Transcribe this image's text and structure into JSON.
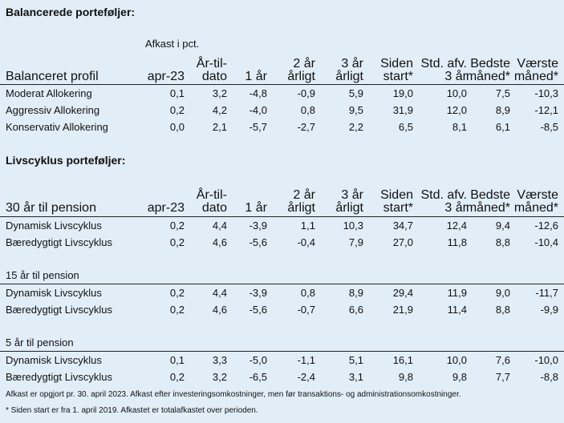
{
  "section1": {
    "title": "Balancerede porteføljer:",
    "afkast_label": "Afkast i pct.",
    "first_col_header": "Balanceret profil",
    "rows": [
      {
        "name": "Moderat Allokering",
        "values": [
          "0,1",
          "3,2",
          "-4,8",
          "-0,9",
          "5,9",
          "19,0",
          "10,0",
          "7,5",
          "-10,3"
        ]
      },
      {
        "name": "Aggressiv Allokering",
        "values": [
          "0,2",
          "4,2",
          "-4,0",
          "0,8",
          "9,5",
          "31,9",
          "12,0",
          "8,9",
          "-12,1"
        ]
      },
      {
        "name": "Konservativ Allokering",
        "values": [
          "0,0",
          "2,1",
          "-5,7",
          "-2,7",
          "2,2",
          "6,5",
          "8,1",
          "6,1",
          "-8,5"
        ]
      }
    ]
  },
  "columns": [
    "apr-23",
    "År-til-\ndato",
    "1 år",
    "2 år\nårligt",
    "3 år\nårligt",
    "Siden\nstart*",
    "Std. afv.\n3 år",
    "Bedste\nmåned*",
    "Værste\nmåned*"
  ],
  "section2": {
    "title": "Livscyklus porteføljer:",
    "groups": [
      {
        "label": "30 år til pension",
        "rows": [
          {
            "name": "Dynamisk Livscyklus",
            "values": [
              "0,2",
              "4,4",
              "-3,9",
              "1,1",
              "10,3",
              "34,7",
              "12,4",
              "9,4",
              "-12,6"
            ]
          },
          {
            "name": "Bæredygtigt Livscyklus",
            "values": [
              "0,2",
              "4,6",
              "-5,6",
              "-0,4",
              "7,9",
              "27,0",
              "11,8",
              "8,8",
              "-10,4"
            ]
          }
        ]
      },
      {
        "label": "15 år til pension",
        "rows": [
          {
            "name": "Dynamisk Livscyklus",
            "values": [
              "0,2",
              "4,4",
              "-3,9",
              "0,8",
              "8,9",
              "29,4",
              "11,9",
              "9,0",
              "-11,7"
            ]
          },
          {
            "name": "Bæredygtigt Livscyklus",
            "values": [
              "0,2",
              "4,6",
              "-5,6",
              "-0,7",
              "6,6",
              "21,9",
              "11,4",
              "8,8",
              "-9,9"
            ]
          }
        ]
      },
      {
        "label": "5 år til pension",
        "rows": [
          {
            "name": "Dynamisk Livscyklus",
            "values": [
              "0,1",
              "3,3",
              "-5,0",
              "-1,1",
              "5,1",
              "16,1",
              "10,0",
              "7,6",
              "-10,0"
            ]
          },
          {
            "name": "Bæredygtigt Livscyklus",
            "values": [
              "0,2",
              "3,2",
              "-6,5",
              "-2,4",
              "3,1",
              "9,8",
              "9,8",
              "7,7",
              "-8,8"
            ]
          }
        ]
      }
    ]
  },
  "footnotes": [
    "Afkast er opgjort pr. 30. april 2023. Afkast efter investeringsomkostninger, men før transaktions- og administrationsomkostninger.",
    "* Siden start er fra 1. april 2019. Afkastet er totalafkastet over perioden."
  ]
}
